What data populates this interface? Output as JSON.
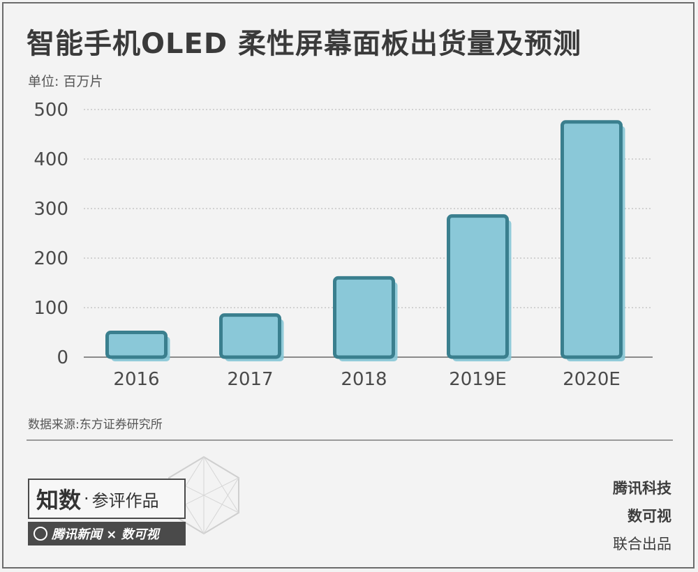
{
  "title": "智能手机OLED 柔性屏幕面板出货量及预测",
  "unit_label": "单位: 百万片",
  "source": "数据来源:东方证券研究所",
  "badge": {
    "main": "知数",
    "dot": "·",
    "sub": "参评作品",
    "bar_text": "腾讯新闻 × 数可视"
  },
  "credits": {
    "line1": "腾讯科技",
    "line2": "数可视",
    "line3": "联合出品"
  },
  "colors": {
    "bar_fill": "#8ac8d8",
    "bar_stroke": "#3a7f8e",
    "bar_shadow": "#86c6d6",
    "grid": "#bdbdbd",
    "axis_text": "#4a4a4a"
  },
  "chart_data": {
    "type": "bar",
    "categories": [
      "2016",
      "2017",
      "2018",
      "2019E",
      "2020E"
    ],
    "values": [
      50,
      85,
      160,
      285,
      475
    ],
    "ylim": [
      0,
      500
    ],
    "yticks": [
      0,
      100,
      200,
      300,
      400,
      500
    ],
    "grid": true
  }
}
